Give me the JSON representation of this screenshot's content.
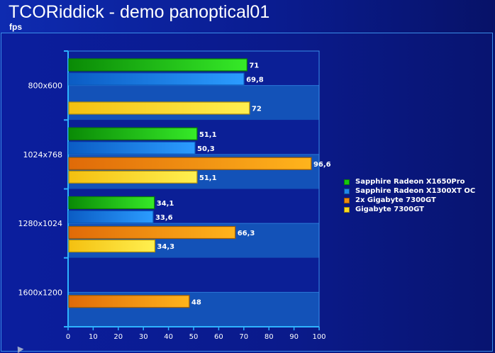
{
  "chart_data": {
    "type": "bar",
    "orientation": "horizontal",
    "title": "TCORiddick - demo panoptical01",
    "subtitle": "fps",
    "categories": [
      "800x600",
      "1024x768",
      "1280x1024",
      "1600x1200"
    ],
    "series": [
      {
        "name": "Sapphire Radeon X1650Pro",
        "color": "#16c80e",
        "values": [
          71,
          51.1,
          34.1,
          null
        ],
        "labels": [
          "71",
          "51,1",
          "34,1",
          ""
        ]
      },
      {
        "name": "Sapphire Radeon X1300XT OC",
        "color": "#1f86ec",
        "values": [
          69.8,
          50.3,
          33.6,
          null
        ],
        "labels": [
          "69,8",
          "50,3",
          "33,6",
          ""
        ]
      },
      {
        "name": "2x Gigabyte 7300GT",
        "color": "#ef8c0e",
        "values": [
          null,
          96.6,
          66.3,
          48
        ],
        "labels": [
          "",
          "96,6",
          "66,3",
          "48"
        ]
      },
      {
        "name": "Gigabyte 7300GT",
        "color": "#fbd820",
        "values": [
          72,
          51.1,
          34.3,
          null
        ],
        "labels": [
          "72",
          "51,1",
          "34,3",
          ""
        ]
      }
    ],
    "xlim": [
      0,
      100
    ],
    "xticks": [
      "0",
      "10",
      "20",
      "30",
      "40",
      "50",
      "60",
      "70",
      "80",
      "90",
      "100"
    ],
    "legend_position": "right",
    "grid": false
  }
}
